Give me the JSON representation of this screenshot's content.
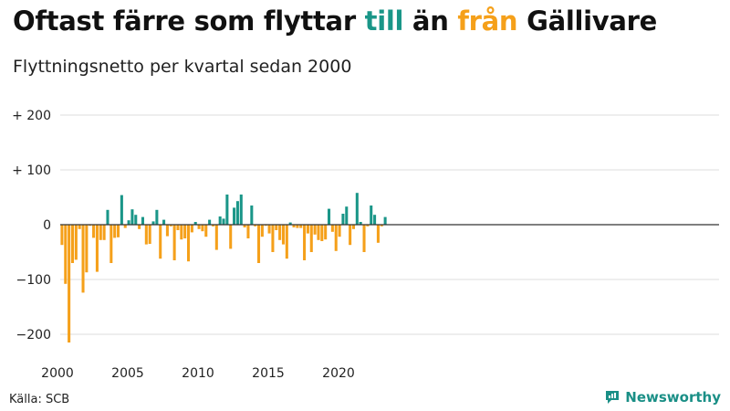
{
  "title": {
    "part1": "Oftast färre som flyttar ",
    "word_to": "till",
    "part2": " än ",
    "word_from": "från",
    "part3": " Gällivare"
  },
  "subtitle": "Flyttningsnetto per kvartal sedan 2000",
  "source": "Källa: SCB",
  "brand": {
    "name": "Newsworthy",
    "icon": "newsworthy-logo-icon"
  },
  "colors": {
    "positive": "#1a9688",
    "negative": "#f5a01a",
    "to_word": "#1a9688",
    "from_word": "#f5a01a",
    "grid": "#dddddd",
    "zero": "#333333"
  },
  "chart_data": {
    "type": "bar",
    "title": "Oftast färre som flyttar till än från Gällivare",
    "subtitle": "Flyttningsnetto per kvartal sedan 2000",
    "xlabel": "",
    "ylabel": "",
    "ylim": [
      -215,
      215
    ],
    "x_start_year": 2000,
    "x_tick_years": [
      2000,
      2005,
      2010,
      2015,
      2020
    ],
    "x_tick_labels": [
      "2000",
      "2005",
      "2010",
      "2015",
      "2020"
    ],
    "y_ticks": [
      200,
      100,
      0,
      -100,
      -200
    ],
    "y_tick_labels": [
      "+ 200",
      "+ 100",
      "0",
      "−100",
      "−200"
    ],
    "grid": true,
    "values": [
      -37,
      -108,
      -215,
      -70,
      -64,
      -8,
      -124,
      -87,
      -2,
      -24,
      -86,
      -28,
      -28,
      27,
      -70,
      -24,
      -23,
      54,
      -6,
      8,
      28,
      18,
      -8,
      14,
      -36,
      -35,
      6,
      27,
      -62,
      9,
      -21,
      -3,
      -65,
      -10,
      -27,
      -25,
      -67,
      -14,
      5,
      -8,
      -12,
      -22,
      9,
      -3,
      -46,
      15,
      11,
      55,
      -44,
      31,
      43,
      55,
      -5,
      -25,
      35,
      -3,
      -70,
      -22,
      -2,
      -16,
      -50,
      -10,
      -28,
      -36,
      -62,
      4,
      -5,
      -6,
      -6,
      -65,
      -16,
      -50,
      -18,
      -28,
      -30,
      -27,
      29,
      -13,
      -48,
      -22,
      20,
      33,
      -37,
      -8,
      58,
      5,
      -50,
      -3,
      35,
      18,
      -33,
      -3,
      14
    ]
  }
}
